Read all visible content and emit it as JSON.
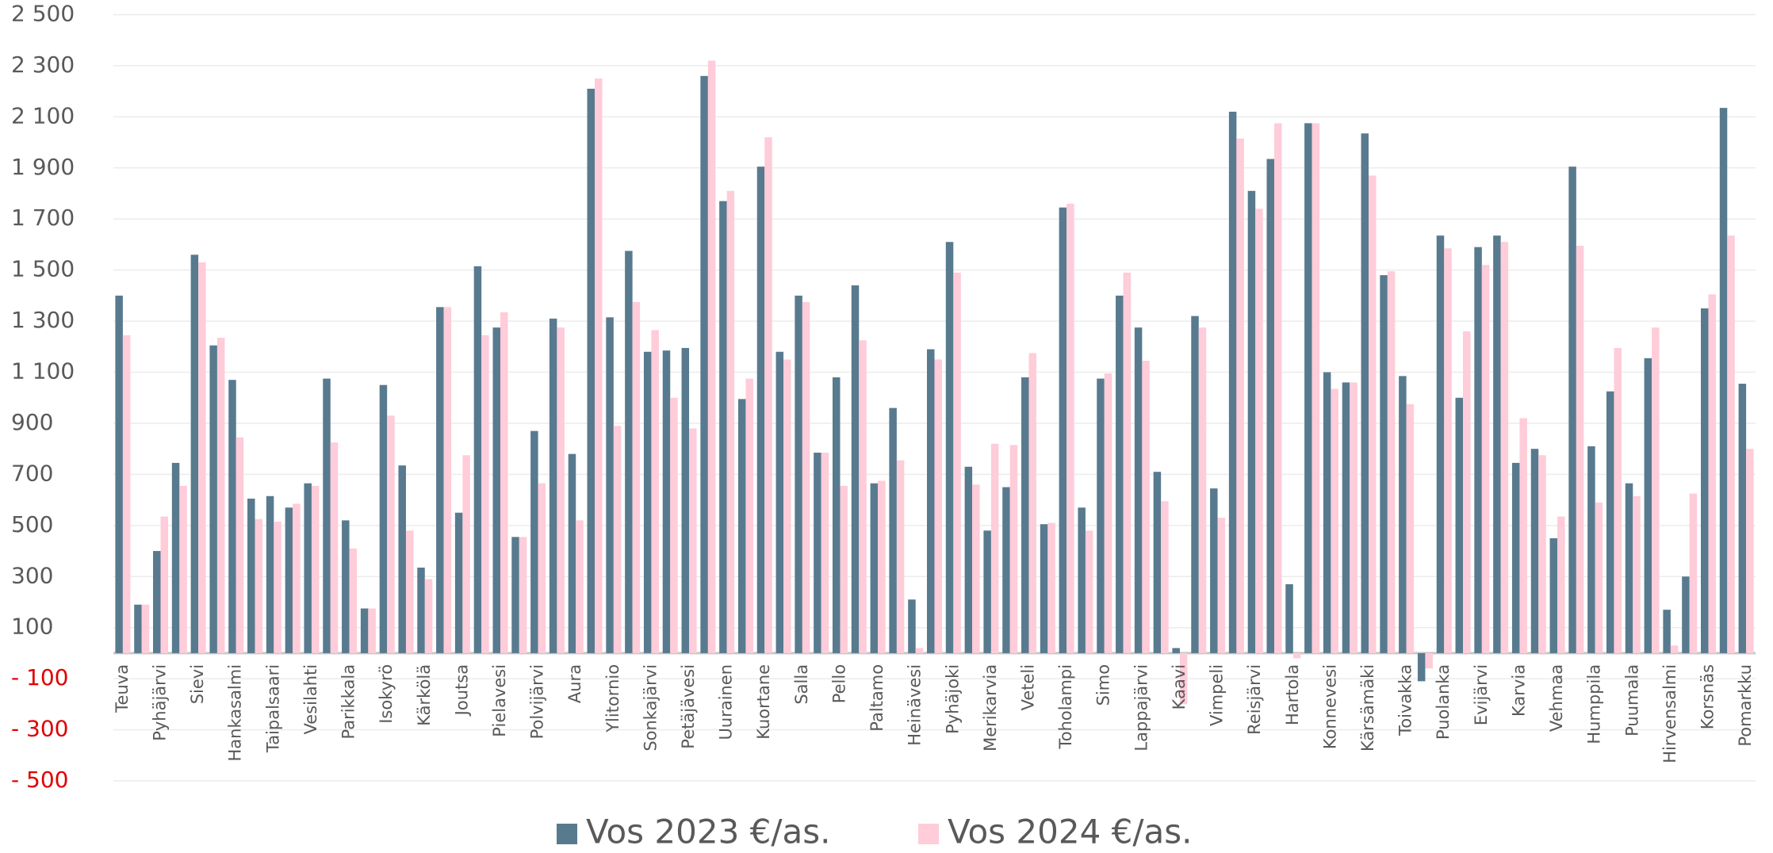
{
  "chart_data": {
    "type": "bar",
    "categories": [
      "Teuva",
      null,
      "Pyhäjärvi",
      null,
      "Sievi",
      null,
      "Hankasalmi",
      null,
      "Taipalsaari",
      null,
      "Vesilahti",
      null,
      "Parikkala",
      null,
      "Isokyrö",
      null,
      "Kärkölä",
      null,
      "Joutsa",
      null,
      "Pielavesi",
      null,
      "Polvijärvi",
      null,
      "Aura",
      null,
      "Ylitornio",
      null,
      "Sonkajärvi",
      null,
      "Petäjävesi",
      null,
      "Uurainen",
      null,
      "Kuortane",
      null,
      "Salla",
      null,
      "Pello",
      null,
      "Paltamo",
      null,
      "Heinävesi",
      null,
      "Pyhäjoki",
      null,
      "Merikarvia",
      null,
      "Veteli",
      null,
      "Toholampi",
      null,
      "Simo",
      null,
      "Lappajärvi",
      null,
      "Kaavi",
      null,
      "Vimpeli",
      null,
      "Reisjärvi",
      null,
      "Hartola",
      null,
      "Konnevesi",
      null,
      "Kärsämäki",
      null,
      "Toivakka",
      null,
      "Puolanka",
      null,
      "Evijärvi",
      null,
      "Karvia",
      null,
      "Vehmaa",
      null,
      "Humppila",
      null,
      "Puumala",
      null,
      "Hirvensalmi",
      null,
      "Korsnäs",
      null,
      "Pomarkku"
    ],
    "series": [
      {
        "name": "Vos 2023 €/as.",
        "color": "#587a8f",
        "values": [
          1400,
          190,
          400,
          745,
          1560,
          1205,
          1070,
          605,
          615,
          570,
          665,
          1075,
          520,
          175,
          1050,
          735,
          335,
          1355,
          550,
          1515,
          1275,
          455,
          870,
          1310,
          780,
          2210,
          1315,
          1575,
          1180,
          1185,
          1195,
          2260,
          1770,
          995,
          1905,
          1180,
          1400,
          785,
          1080,
          1440,
          665,
          960,
          210,
          1190,
          1610,
          730,
          480,
          650,
          1080,
          505,
          1745,
          570,
          1075,
          1400,
          1275,
          710,
          20,
          1320,
          645,
          2120,
          1810,
          1935,
          270,
          2075,
          1100,
          1060,
          2035,
          1480,
          1085,
          -110,
          1635,
          1000,
          1590,
          1635,
          745,
          800,
          450,
          1905,
          810,
          1025,
          665,
          1155,
          170,
          300,
          1350,
          2135,
          1055
        ]
      },
      {
        "name": "Vos 2024 €/as.",
        "color": "#ffccd9",
        "values": [
          1245,
          190,
          535,
          655,
          1530,
          1235,
          845,
          525,
          515,
          585,
          655,
          825,
          410,
          175,
          930,
          480,
          290,
          1355,
          775,
          1245,
          1335,
          455,
          665,
          1275,
          520,
          2250,
          890,
          1375,
          1265,
          1000,
          880,
          2320,
          1810,
          1075,
          2020,
          1150,
          1375,
          785,
          655,
          1225,
          675,
          755,
          20,
          1150,
          1490,
          660,
          820,
          815,
          1175,
          510,
          1760,
          480,
          1095,
          1490,
          1145,
          595,
          -200,
          1275,
          530,
          2015,
          1740,
          2075,
          -20,
          2075,
          1035,
          1060,
          1870,
          1495,
          975,
          -60,
          1585,
          1260,
          1520,
          1610,
          920,
          775,
          535,
          1595,
          590,
          1195,
          615,
          1275,
          30,
          625,
          1405,
          1635,
          800
        ]
      }
    ],
    "ylim": [
      -500,
      2500
    ],
    "yticks": [
      {
        "value": -500,
        "label": "- 500"
      },
      {
        "value": -300,
        "label": "- 300"
      },
      {
        "value": -100,
        "label": "- 100"
      },
      100,
      300,
      500,
      700,
      900,
      {
        "value": 1100,
        "label": "1 100"
      },
      {
        "value": 1300,
        "label": "1 300"
      },
      {
        "value": 1500,
        "label": "1 500"
      },
      {
        "value": 1700,
        "label": "1 700"
      },
      {
        "value": 1900,
        "label": "1 900"
      },
      {
        "value": 2100,
        "label": "2 100"
      },
      {
        "value": 2300,
        "label": "2 300"
      },
      {
        "value": 2500,
        "label": "2 500"
      }
    ],
    "grid": true,
    "legend": "bottom"
  }
}
